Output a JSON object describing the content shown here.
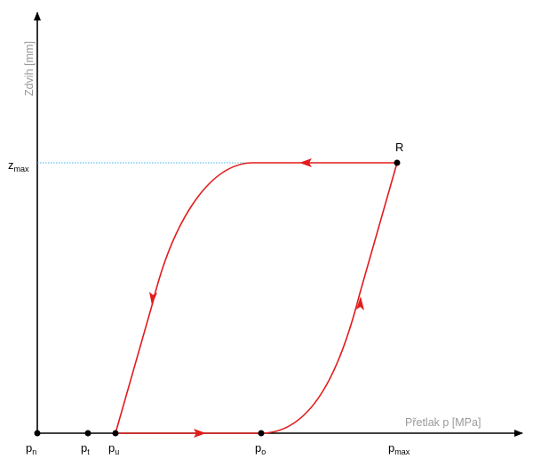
{
  "axes": {
    "y_label": "Zdvih [mm]",
    "x_label": "Přetlak p [MPa]"
  },
  "x_labels": [
    {
      "base": "p",
      "sub": "n"
    },
    {
      "base": "p",
      "sub": "t"
    },
    {
      "base": "p",
      "sub": "u"
    },
    {
      "base": "p",
      "sub": "o"
    },
    {
      "base": "p",
      "sub": "max"
    }
  ],
  "y_labels": [
    {
      "base": "z",
      "sub": "max"
    }
  ],
  "point_label": "R"
}
